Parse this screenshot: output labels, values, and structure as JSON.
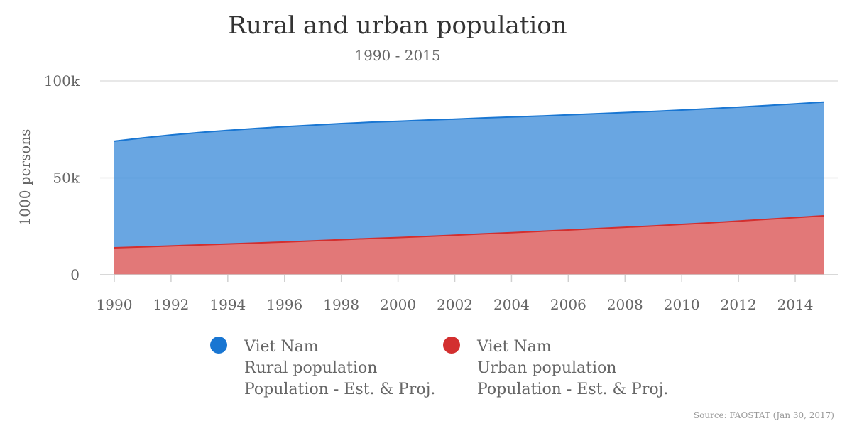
{
  "chart_data": {
    "type": "area",
    "stacked": true,
    "title": "Rural and urban population",
    "subtitle": "1990 - 2015",
    "ylabel": "1000 persons",
    "xlabel": "",
    "x": [
      1990,
      1991,
      1992,
      1993,
      1994,
      1995,
      1996,
      1997,
      1998,
      1999,
      2000,
      2001,
      2002,
      2003,
      2004,
      2005,
      2006,
      2007,
      2008,
      2009,
      2010,
      2011,
      2012,
      2013,
      2014,
      2015
    ],
    "xlim": [
      1990,
      2015
    ],
    "ylim": [
      0,
      100000
    ],
    "x_ticks": [
      1990,
      1992,
      1994,
      1996,
      1998,
      2000,
      2002,
      2004,
      2006,
      2008,
      2010,
      2012,
      2014
    ],
    "y_ticks": [
      0,
      50000,
      100000
    ],
    "y_tick_labels": [
      "0",
      "50k",
      "100k"
    ],
    "grid": true,
    "legend_position": "bottom",
    "series": [
      {
        "key": "urban",
        "color": "#d32f2f",
        "legend_lines": [
          "Viet Nam",
          "Urban population",
          "Population - Est. & Proj."
        ],
        "values": [
          13900,
          14400,
          14900,
          15400,
          15900,
          16400,
          16900,
          17500,
          18100,
          18700,
          19200,
          19800,
          20400,
          21100,
          21700,
          22400,
          23100,
          23800,
          24500,
          25200,
          26000,
          26800,
          27700,
          28600,
          29500,
          30400
        ]
      },
      {
        "key": "rural",
        "color": "#1976d2",
        "legend_lines": [
          "Viet Nam",
          "Rural population",
          "Population - Est. & Proj."
        ],
        "values": [
          55000,
          56200,
          57200,
          58000,
          58600,
          59100,
          59500,
          59700,
          59900,
          60000,
          60000,
          60000,
          59900,
          59800,
          59700,
          59500,
          59400,
          59300,
          59200,
          59100,
          59000,
          58900,
          58800,
          58700,
          58700,
          58700
        ]
      }
    ],
    "source": "Source: FAOSTAT (Jan 30, 2017)"
  }
}
